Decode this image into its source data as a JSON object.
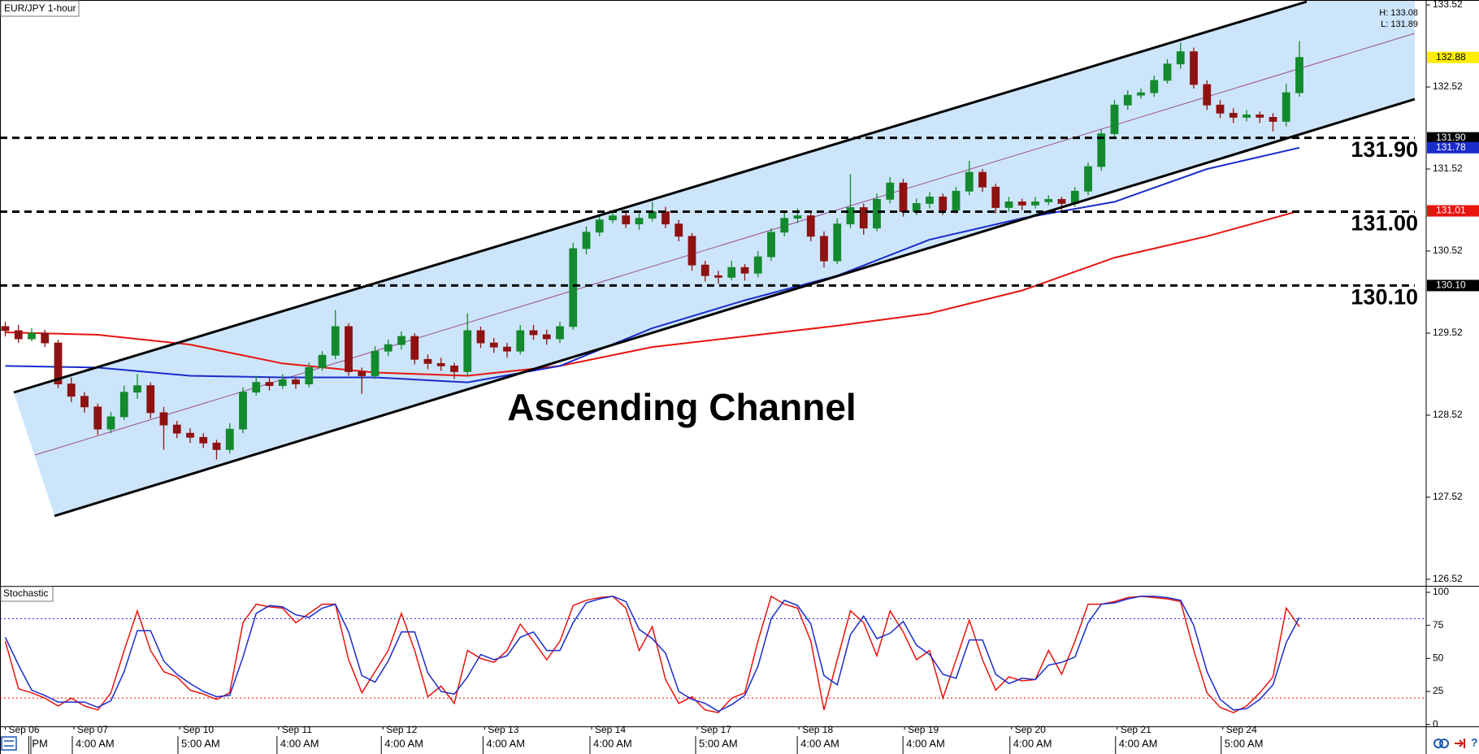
{
  "chart_data": {
    "type": "candlestick",
    "title": "EUR/JPY 1-hour",
    "high_low": [
      "H: 133.08",
      "L: 131.89"
    ],
    "annotation": "Ascending Channel",
    "xlim": [
      -0.4,
      107.6
    ],
    "ylim": [
      126.44,
      133.58
    ],
    "yticks": [
      126.52,
      127.52,
      128.52,
      129.52,
      130.52,
      131.52,
      132.52,
      133.52
    ],
    "xticks": [
      {
        "value": 0,
        "label": "Sep 06"
      },
      {
        "value": 5.2,
        "label": "Sep 07"
      },
      {
        "value": 13.2,
        "label": "Sep 10"
      },
      {
        "value": 20.7,
        "label": "Sep 11"
      },
      {
        "value": 28.6,
        "label": "Sep 12"
      },
      {
        "value": 36.3,
        "label": "Sep 13"
      },
      {
        "value": 44.4,
        "label": "Sep 14"
      },
      {
        "value": 52.4,
        "label": "Sep 17"
      },
      {
        "value": 60.1,
        "label": "Sep 18"
      },
      {
        "value": 68.1,
        "label": "Sep 19"
      },
      {
        "value": 76.2,
        "label": "Sep 20"
      },
      {
        "value": 84.2,
        "label": "Sep 21"
      },
      {
        "value": 92.2,
        "label": "Sep 24"
      }
    ],
    "xticks2": [
      {
        "value": 1.9,
        "label": "PM"
      },
      {
        "value": 5.2,
        "label": "4:00 AM"
      },
      {
        "value": 13.2,
        "label": "5:00 AM"
      },
      {
        "value": 20.7,
        "label": "4:00 AM"
      },
      {
        "value": 28.6,
        "label": "4:00 AM"
      },
      {
        "value": 36.3,
        "label": "4:00 AM"
      },
      {
        "value": 44.4,
        "label": "4:00 AM"
      },
      {
        "value": 52.4,
        "label": "5:00 AM"
      },
      {
        "value": 60.1,
        "label": "4:00 AM"
      },
      {
        "value": 68.1,
        "label": "4:00 AM"
      },
      {
        "value": 76.2,
        "label": "4:00 AM"
      },
      {
        "value": 84.2,
        "label": "4:00 AM"
      },
      {
        "value": 92.2,
        "label": "5:00 AM"
      }
    ],
    "up_color": "#138a2e",
    "down_color": "#8e1212",
    "series": [
      {
        "ohlc": [
          [
            129.6,
            129.66,
            129.48,
            129.55
          ],
          [
            129.55,
            129.62,
            129.4,
            129.45
          ],
          [
            129.45,
            129.58,
            129.42,
            129.52
          ],
          [
            129.52,
            129.56,
            129.35,
            129.4
          ],
          [
            129.4,
            129.44,
            128.85,
            128.9
          ],
          [
            128.9,
            128.98,
            128.68,
            128.75
          ],
          [
            128.75,
            128.8,
            128.55,
            128.62
          ],
          [
            128.62,
            128.66,
            128.28,
            128.35
          ],
          [
            128.35,
            128.56,
            128.3,
            128.5
          ],
          [
            128.5,
            128.88,
            128.46,
            128.8
          ],
          [
            128.8,
            129.02,
            128.72,
            128.88
          ],
          [
            128.88,
            128.92,
            128.48,
            128.55
          ],
          [
            128.55,
            128.62,
            128.1,
            128.4
          ],
          [
            128.4,
            128.45,
            128.24,
            128.3
          ],
          [
            128.3,
            128.36,
            128.18,
            128.25
          ],
          [
            128.25,
            128.3,
            128.12,
            128.18
          ],
          [
            128.18,
            128.22,
            127.98,
            128.1
          ],
          [
            128.1,
            128.42,
            128.05,
            128.35
          ],
          [
            128.35,
            128.86,
            128.3,
            128.8
          ],
          [
            128.8,
            129.0,
            128.76,
            128.92
          ],
          [
            128.92,
            128.98,
            128.82,
            128.88
          ],
          [
            128.88,
            129.02,
            128.84,
            128.95
          ],
          [
            128.95,
            128.99,
            128.84,
            128.9
          ],
          [
            128.9,
            129.16,
            128.86,
            129.1
          ],
          [
            129.1,
            129.3,
            129.06,
            129.25
          ],
          [
            129.25,
            129.8,
            129.2,
            129.6
          ],
          [
            129.6,
            129.64,
            129.0,
            129.05
          ],
          [
            129.05,
            129.1,
            128.78,
            129.0
          ],
          [
            129.0,
            129.36,
            128.96,
            129.3
          ],
          [
            129.3,
            129.44,
            129.24,
            129.38
          ],
          [
            129.38,
            129.54,
            129.32,
            129.48
          ],
          [
            129.48,
            129.52,
            129.14,
            129.2
          ],
          [
            129.2,
            129.26,
            129.08,
            129.15
          ],
          [
            129.15,
            129.22,
            129.06,
            129.12
          ],
          [
            129.12,
            129.16,
            128.96,
            129.05
          ],
          [
            129.05,
            129.76,
            129.0,
            129.55
          ],
          [
            129.55,
            129.6,
            129.34,
            129.4
          ],
          [
            129.4,
            129.46,
            129.28,
            129.35
          ],
          [
            129.35,
            129.4,
            129.22,
            129.3
          ],
          [
            129.3,
            129.62,
            129.26,
            129.55
          ],
          [
            129.55,
            129.62,
            129.44,
            129.5
          ],
          [
            129.5,
            129.56,
            129.38,
            129.45
          ],
          [
            129.45,
            129.66,
            129.4,
            129.6
          ],
          [
            129.6,
            130.62,
            129.56,
            130.55
          ],
          [
            130.55,
            130.82,
            130.48,
            130.75
          ],
          [
            130.75,
            130.96,
            130.7,
            130.9
          ],
          [
            130.9,
            131.02,
            130.86,
            130.95
          ],
          [
            130.95,
            131.0,
            130.8,
            130.85
          ],
          [
            130.85,
            130.98,
            130.78,
            130.92
          ],
          [
            130.92,
            131.12,
            130.88,
            131.0
          ],
          [
            131.0,
            131.06,
            130.8,
            130.85
          ],
          [
            130.85,
            130.9,
            130.64,
            130.7
          ],
          [
            130.7,
            130.74,
            130.28,
            130.35
          ],
          [
            130.35,
            130.4,
            130.15,
            130.22
          ],
          [
            130.22,
            130.28,
            130.12,
            130.2
          ],
          [
            130.2,
            130.4,
            130.16,
            130.32
          ],
          [
            130.32,
            130.36,
            130.16,
            130.25
          ],
          [
            130.25,
            130.52,
            130.2,
            130.45
          ],
          [
            130.45,
            130.8,
            130.4,
            130.75
          ],
          [
            130.75,
            131.0,
            130.7,
            130.92
          ],
          [
            130.92,
            131.04,
            130.86,
            130.95
          ],
          [
            130.95,
            131.0,
            130.64,
            130.7
          ],
          [
            130.7,
            130.76,
            130.32,
            130.4
          ],
          [
            130.4,
            130.92,
            130.36,
            130.85
          ],
          [
            130.85,
            131.46,
            130.8,
            131.05
          ],
          [
            131.05,
            131.1,
            130.72,
            130.8
          ],
          [
            130.8,
            131.22,
            130.76,
            131.15
          ],
          [
            131.15,
            131.42,
            131.1,
            131.35
          ],
          [
            131.35,
            131.4,
            130.94,
            131.0
          ],
          [
            131.0,
            131.16,
            130.96,
            131.1
          ],
          [
            131.1,
            131.24,
            131.04,
            131.18
          ],
          [
            131.18,
            131.22,
            130.96,
            131.02
          ],
          [
            131.02,
            131.3,
            130.98,
            131.25
          ],
          [
            131.25,
            131.62,
            131.2,
            131.48
          ],
          [
            131.48,
            131.52,
            131.24,
            131.3
          ],
          [
            131.3,
            131.34,
            130.98,
            131.05
          ],
          [
            131.05,
            131.18,
            131.0,
            131.12
          ],
          [
            131.12,
            131.16,
            131.02,
            131.08
          ],
          [
            131.08,
            131.18,
            131.04,
            131.12
          ],
          [
            131.12,
            131.2,
            131.08,
            131.15
          ],
          [
            131.15,
            131.18,
            131.02,
            131.1
          ],
          [
            131.1,
            131.3,
            131.06,
            131.25
          ],
          [
            131.25,
            131.6,
            131.2,
            131.55
          ],
          [
            131.55,
            132.0,
            131.5,
            131.95
          ],
          [
            131.95,
            132.36,
            131.9,
            132.3
          ],
          [
            132.3,
            132.48,
            132.24,
            132.42
          ],
          [
            132.42,
            132.5,
            132.38,
            132.45
          ],
          [
            132.45,
            132.66,
            132.4,
            132.6
          ],
          [
            132.6,
            132.86,
            132.56,
            132.8
          ],
          [
            132.8,
            133.06,
            132.74,
            132.95
          ],
          [
            132.95,
            133.0,
            132.5,
            132.55
          ],
          [
            132.55,
            132.6,
            132.24,
            132.3
          ],
          [
            132.3,
            132.36,
            132.14,
            132.2
          ],
          [
            132.2,
            132.26,
            132.08,
            132.15
          ],
          [
            132.15,
            132.24,
            132.1,
            132.18
          ],
          [
            132.18,
            132.22,
            132.08,
            132.15
          ],
          [
            132.15,
            132.2,
            131.98,
            132.1
          ],
          [
            132.1,
            132.56,
            132.04,
            132.45
          ],
          [
            132.45,
            133.08,
            132.4,
            132.88
          ]
        ]
      }
    ],
    "overlays": [
      {
        "color": "#e8140e",
        "x": [
          0,
          7,
          14,
          21,
          28,
          35,
          42,
          49,
          56,
          63,
          70,
          77,
          84,
          91,
          98
        ],
        "values": [
          129.53,
          129.5,
          129.38,
          129.15,
          129.04,
          129.0,
          129.12,
          129.35,
          129.48,
          129.61,
          129.76,
          130.04,
          130.44,
          130.7,
          131.01
        ]
      },
      {
        "color": "#1a2ccc",
        "x": [
          0,
          7,
          14,
          21,
          28,
          35,
          42,
          49,
          56,
          63,
          70,
          77,
          84,
          91,
          98
        ],
        "values": [
          129.12,
          129.1,
          129.0,
          128.98,
          128.98,
          128.92,
          129.12,
          129.58,
          129.92,
          130.22,
          130.66,
          130.92,
          131.12,
          131.52,
          131.78
        ]
      }
    ],
    "levels": [
      {
        "value": 131.9,
        "label": "131.90"
      },
      {
        "value": 131,
        "label": "131.00"
      },
      {
        "value": 130.1,
        "label": "130.10"
      }
    ],
    "price_tags": [
      {
        "value": 132.88,
        "color": "#ffee00",
        "text_color": "#000000"
      },
      {
        "value": 131.9,
        "label": "131.90",
        "color": "#000000",
        "text_color": "#ffffff"
      },
      {
        "value": 131.78,
        "color": "#1a2ccc",
        "text_color": "#ffffff"
      },
      {
        "value": 131.01,
        "color": "#e8140e",
        "text_color": "#ffffff"
      },
      {
        "value": 130.1,
        "label": "130.10",
        "color": "#000000",
        "text_color": "#ffffff"
      }
    ],
    "indicator": {
      "type": "line",
      "title": "Stochastic",
      "ylim": [
        -1.4,
        104.3
      ],
      "yticks": [
        0,
        25,
        50,
        75,
        100
      ],
      "levels": [
        {
          "value": 80,
          "color": "#1a2ccc"
        },
        {
          "value": 20,
          "color": "#e8140e"
        }
      ],
      "series": [
        {
          "color": "#e8140e",
          "values": [
            63,
            27,
            24,
            20,
            14,
            20,
            14,
            11,
            24,
            56,
            86,
            56,
            40,
            36,
            26,
            23,
            19,
            24,
            77,
            91,
            89,
            88,
            77,
            84,
            91,
            91,
            49,
            24,
            40,
            56,
            84,
            56,
            21,
            29,
            16,
            56,
            50,
            47,
            56,
            76,
            63,
            49,
            63,
            90,
            94,
            96,
            97,
            88,
            56,
            74,
            34,
            16,
            21,
            11,
            9,
            20,
            24,
            63,
            97,
            91,
            88,
            63,
            11,
            49,
            86,
            77,
            52,
            86,
            70,
            49,
            56,
            20,
            49,
            79,
            49,
            26,
            36,
            33,
            34,
            56,
            38,
            63,
            91,
            91,
            93,
            96,
            97,
            96,
            95,
            93,
            56,
            24,
            13,
            9,
            14,
            24,
            36,
            88,
            74
          ]
        },
        {
          "color": "#1a2ccc",
          "values": [
            66,
            45,
            26,
            22,
            17,
            17,
            17,
            13,
            18,
            40,
            71,
            71,
            48,
            38,
            31,
            25,
            21,
            22,
            51,
            84,
            90,
            89,
            83,
            81,
            88,
            91,
            70,
            37,
            32,
            48,
            70,
            70,
            39,
            25,
            23,
            36,
            53,
            49,
            52,
            66,
            70,
            56,
            56,
            77,
            92,
            95,
            97,
            93,
            72,
            65,
            54,
            25,
            19,
            16,
            10,
            15,
            22,
            44,
            80,
            94,
            90,
            76,
            37,
            30,
            68,
            82,
            65,
            69,
            78,
            60,
            53,
            38,
            35,
            64,
            64,
            38,
            31,
            35,
            34,
            45,
            47,
            51,
            77,
            91,
            92,
            95,
            97,
            97,
            96,
            94,
            75,
            40,
            19,
            11,
            12,
            19,
            30,
            62,
            81
          ]
        }
      ]
    }
  }
}
